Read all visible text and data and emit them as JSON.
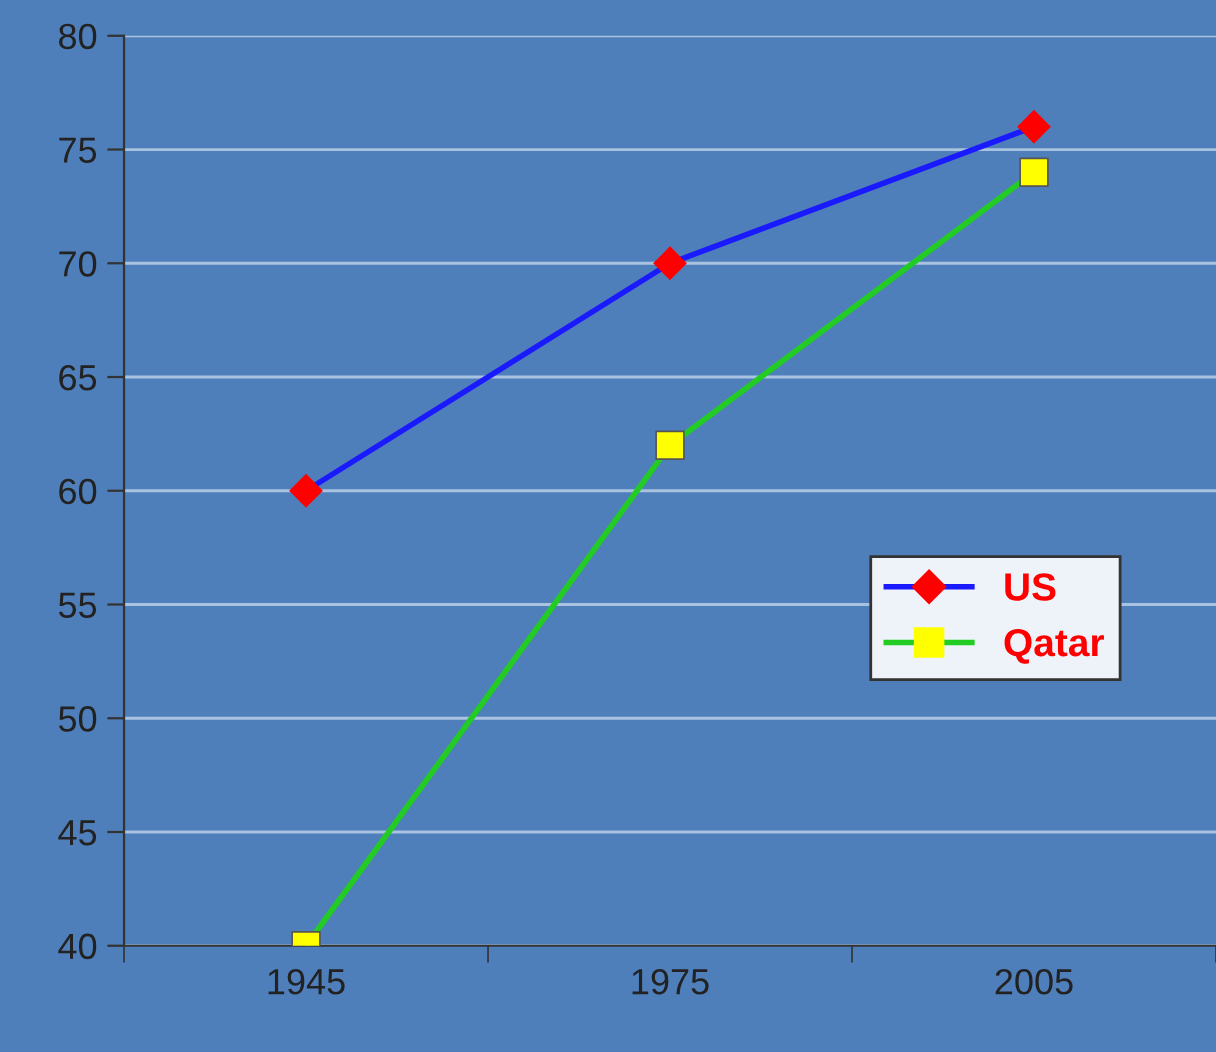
{
  "chart_data": {
    "type": "line",
    "x": [
      1945,
      1975,
      2005
    ],
    "xlim": [
      1930,
      2020
    ],
    "xticks": [
      {
        "value": 1930,
        "label": null
      },
      1945,
      {
        "value": 1960,
        "label": null
      },
      1975,
      {
        "value": 1990,
        "label": null
      },
      2005,
      {
        "value": 2020,
        "label": null
      }
    ],
    "series": [
      {
        "name": "US",
        "color": "#1a1aff",
        "colors": [
          "#ff0000",
          "#ff0000",
          "#ff0000"
        ],
        "marker": "diamond",
        "values": [
          60,
          70,
          76
        ]
      },
      {
        "name": "Qatar",
        "color": "#22cc22",
        "colors": [
          "#ffff00",
          "#ffff00",
          "#ffff00"
        ],
        "marker": "square",
        "values": [
          40,
          62,
          74
        ]
      }
    ],
    "ylim": [
      40,
      80
    ],
    "yticks": [
      40,
      45,
      50,
      55,
      60,
      65,
      70,
      75,
      80
    ],
    "grid": "y",
    "legend": "right"
  }
}
